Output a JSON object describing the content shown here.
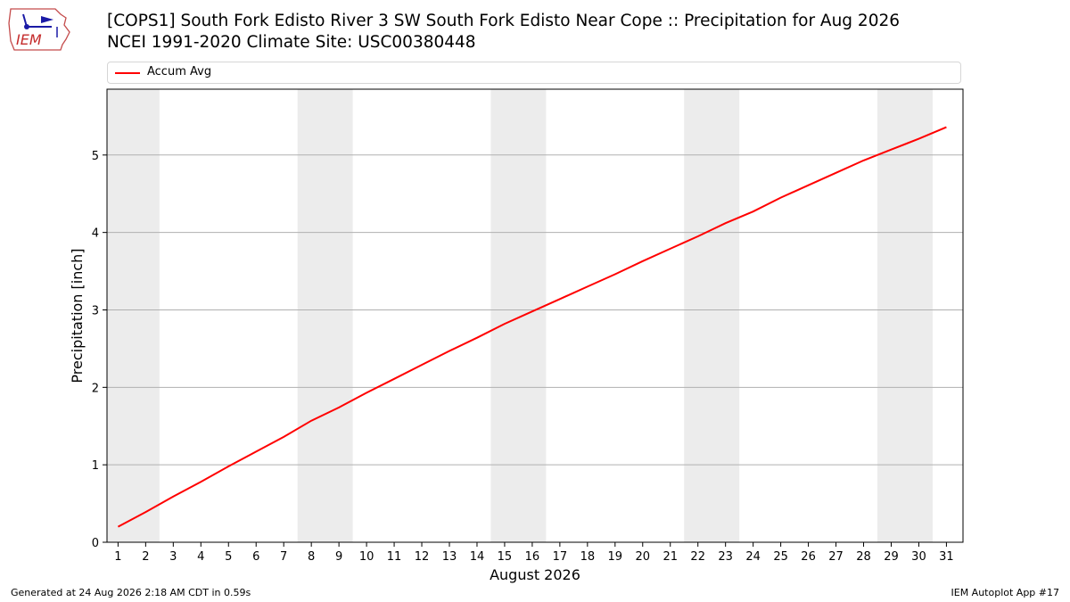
{
  "logo": {
    "text": "IEM"
  },
  "title": {
    "line1": "[COPS1] South Fork Edisto River 3 SW South Fork Edisto Near Cope :: Precipitation for Aug 2026",
    "line2": "NCEI 1991-2020 Climate Site: USC00380448"
  },
  "footer": {
    "left": "Generated at 24 Aug 2026 2:18 AM CDT in 0.59s",
    "right": "IEM Autoplot App #17"
  },
  "chart_data": {
    "type": "line",
    "xlabel": "August 2026",
    "ylabel": "Precipitation [inch]",
    "xlim": [
      0.6,
      31.6
    ],
    "ylim": [
      0,
      5.85
    ],
    "yticks": [
      0,
      1,
      2,
      3,
      4,
      5
    ],
    "grid": "horizontal",
    "legend_position": "top",
    "weekend_shading": [
      [
        0.5,
        2.5
      ],
      [
        7.5,
        9.5
      ],
      [
        14.5,
        16.5
      ],
      [
        21.5,
        23.5
      ],
      [
        28.5,
        30.5
      ]
    ],
    "shade_color": "#ececec",
    "series": [
      {
        "name": "Accum Avg",
        "color": "#ff0000",
        "x": [
          1,
          2,
          3,
          4,
          5,
          6,
          7,
          8,
          9,
          10,
          11,
          12,
          13,
          14,
          15,
          16,
          17,
          18,
          19,
          20,
          21,
          22,
          23,
          24,
          25,
          26,
          27,
          28,
          29,
          30,
          31
        ],
        "values": [
          0.2,
          0.39,
          0.59,
          0.78,
          0.98,
          1.17,
          1.36,
          1.57,
          1.74,
          1.93,
          2.11,
          2.29,
          2.47,
          2.64,
          2.82,
          2.98,
          3.14,
          3.3,
          3.46,
          3.63,
          3.79,
          3.95,
          4.12,
          4.27,
          4.45,
          4.61,
          4.77,
          4.93,
          5.07,
          5.21,
          5.36
        ]
      }
    ]
  }
}
